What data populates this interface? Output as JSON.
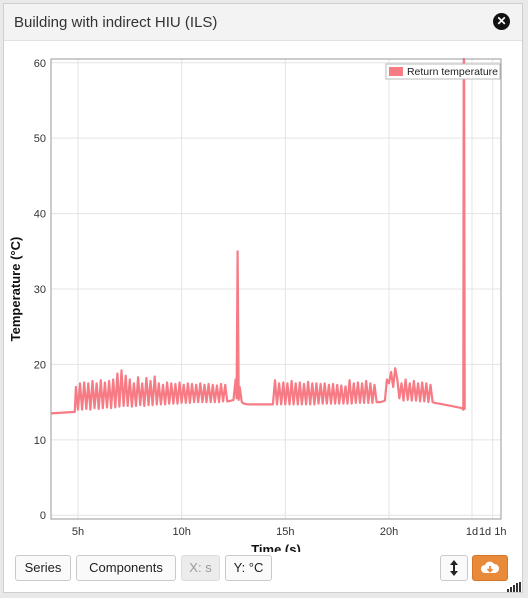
{
  "window": {
    "title": "Building with indirect HIU (ILS)"
  },
  "close_icon": "times-circle-icon",
  "chart_data": {
    "type": "line",
    "title": "",
    "xlabel": "Time (s)",
    "ylabel": "Temperature (°C)",
    "x_unit": "hours",
    "xlim": [
      3.7,
      25.4
    ],
    "ylim": [
      -0.5,
      60.5
    ],
    "x_ticks": [
      {
        "v": 5,
        "label": "5h"
      },
      {
        "v": 10,
        "label": "10h"
      },
      {
        "v": 15,
        "label": "15h"
      },
      {
        "v": 20,
        "label": "20h"
      },
      {
        "v": 24,
        "label": "1d"
      },
      {
        "v": 25,
        "label": "1d 1h"
      }
    ],
    "y_ticks": [
      0,
      10,
      20,
      30,
      40,
      50,
      60
    ],
    "grid": true,
    "legend_position": "top-right",
    "series": [
      {
        "name": "Return temperature",
        "color": "#f77b85",
        "x": [
          3.7,
          4.85,
          4.9,
          5.0,
          5.1,
          5.2,
          5.3,
          5.4,
          5.5,
          5.6,
          5.7,
          5.8,
          5.9,
          6.0,
          6.1,
          6.2,
          6.3,
          6.4,
          6.5,
          6.6,
          6.7,
          6.8,
          6.9,
          7.0,
          7.1,
          7.2,
          7.3,
          7.4,
          7.5,
          7.6,
          7.7,
          7.8,
          7.9,
          8.0,
          8.1,
          8.2,
          8.3,
          8.4,
          8.5,
          8.6,
          8.7,
          8.8,
          8.9,
          9.0,
          9.1,
          9.2,
          9.3,
          9.4,
          9.5,
          9.6,
          9.7,
          9.8,
          9.9,
          10.0,
          10.1,
          10.2,
          10.3,
          10.4,
          10.5,
          10.6,
          10.7,
          10.8,
          10.9,
          11.0,
          11.1,
          11.2,
          11.3,
          11.4,
          11.5,
          11.6,
          11.7,
          11.8,
          11.9,
          12.0,
          12.1,
          12.2,
          12.4,
          12.5,
          12.6,
          12.65,
          12.7,
          12.75,
          12.8,
          12.9,
          13.0,
          13.2,
          13.5,
          14.0,
          14.4,
          14.5,
          14.6,
          14.7,
          14.8,
          14.9,
          15.0,
          15.1,
          15.2,
          15.3,
          15.4,
          15.5,
          15.6,
          15.7,
          15.8,
          15.9,
          16.0,
          16.1,
          16.2,
          16.3,
          16.4,
          16.5,
          16.6,
          16.7,
          16.8,
          16.9,
          17.0,
          17.1,
          17.2,
          17.3,
          17.4,
          17.5,
          17.6,
          17.7,
          17.8,
          17.9,
          18.0,
          18.1,
          18.2,
          18.3,
          18.4,
          18.5,
          18.6,
          18.7,
          18.8,
          18.9,
          19.0,
          19.1,
          19.2,
          19.3,
          19.4,
          19.6,
          19.8,
          19.9,
          20.0,
          20.1,
          20.2,
          20.3,
          20.4,
          20.5,
          20.6,
          20.7,
          20.8,
          20.9,
          21.0,
          21.1,
          21.2,
          21.3,
          21.4,
          21.5,
          21.6,
          21.7,
          21.8,
          21.9,
          22.0,
          22.1,
          22.2,
          22.4,
          23.0,
          23.5,
          23.58,
          23.6,
          23.62,
          23.65
        ],
        "y": [
          13.5,
          13.7,
          17.0,
          14.0,
          17.5,
          14.0,
          17.6,
          14.1,
          17.5,
          14.0,
          17.8,
          14.2,
          17.5,
          14.1,
          17.9,
          14.2,
          17.6,
          14.3,
          17.8,
          14.2,
          18.0,
          14.3,
          18.8,
          14.4,
          19.2,
          14.5,
          18.5,
          14.5,
          18.0,
          14.4,
          17.5,
          14.5,
          18.3,
          14.6,
          17.5,
          14.5,
          18.2,
          14.6,
          17.8,
          14.6,
          18.4,
          14.7,
          17.5,
          14.7,
          17.3,
          14.7,
          17.6,
          14.8,
          17.5,
          14.8,
          17.4,
          14.8,
          17.6,
          14.9,
          17.3,
          14.9,
          17.5,
          14.9,
          17.4,
          15.0,
          17.3,
          15.0,
          17.5,
          15.0,
          17.3,
          15.0,
          17.4,
          15.0,
          17.3,
          15.0,
          17.2,
          15.0,
          17.4,
          15.1,
          17.3,
          15.1,
          15.2,
          15.3,
          18.0,
          15.5,
          35.0,
          15.3,
          17.0,
          15.0,
          14.8,
          14.7,
          14.7,
          14.7,
          14.7,
          17.9,
          14.7,
          17.5,
          14.7,
          17.6,
          14.7,
          17.5,
          14.7,
          17.8,
          14.7,
          17.5,
          14.7,
          17.6,
          14.7,
          17.4,
          14.7,
          17.7,
          14.7,
          17.5,
          14.7,
          17.5,
          14.8,
          17.4,
          14.8,
          17.5,
          14.8,
          17.3,
          14.8,
          17.4,
          14.8,
          17.3,
          14.8,
          17.2,
          14.8,
          17.1,
          14.8,
          17.9,
          14.8,
          17.5,
          14.9,
          17.6,
          14.9,
          17.5,
          14.9,
          17.8,
          14.9,
          17.5,
          14.9,
          17.3,
          15.0,
          15.0,
          15.2,
          18.0,
          17.5,
          19.0,
          17.0,
          19.5,
          18.0,
          15.5,
          17.5,
          15.2,
          18.0,
          15.3,
          17.5,
          15.2,
          17.8,
          15.2,
          17.5,
          15.1,
          17.6,
          15.1,
          17.5,
          15.0,
          17.3,
          15.0,
          14.9,
          14.8,
          14.5,
          14.2,
          14.0,
          60.5,
          60.5,
          14.0
        ]
      }
    ]
  },
  "toolbar": {
    "series_label": "Series",
    "components_label": "Components",
    "x_unit_label": "X: s",
    "y_unit_label": "Y: °C",
    "resize_icon": "vertical-arrows-icon",
    "download_icon": "cloud-download-icon",
    "signal_icon": "signal-bars-icon"
  }
}
